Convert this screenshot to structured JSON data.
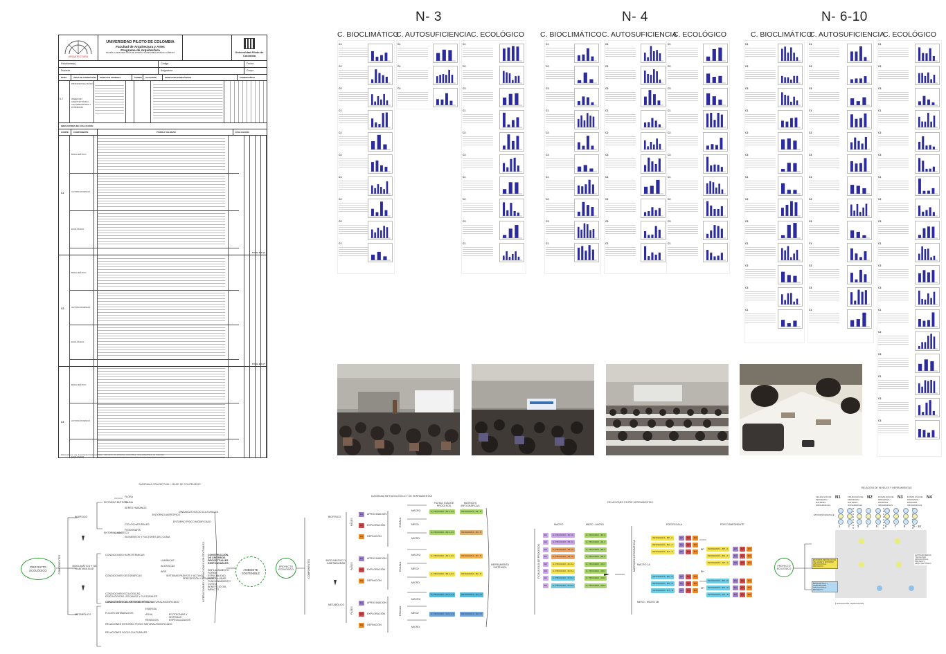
{
  "sheet": {
    "university": "UNIVERSIDAD PILOTO DE COLOMBIA",
    "faculty": "Facultad de Arquitectura y Artes",
    "program": "Programa de Arquitectura",
    "subtitle": "TEORÍA Y METODOLOGÍA DE DISEÑO SOSTENIBLE PARA EL HÁBITAT",
    "logo_text": "ARQUITECTURA",
    "brand": "Universidad Piloto de Colombia",
    "fields": {
      "student": "Estudiante(s)",
      "code": "Código",
      "date": "Fecha",
      "teacher": "Docente",
      "subject": "Asignatura",
      "group": "Grupo"
    },
    "table_headers": [
      "NIVEL",
      "ÁREA DE FORMACIÓN",
      "OBJETIVO GENERAL",
      "COMPE",
      "ACCIONES",
      "OBJETIVOS ESPECÍFICOS",
      "COMPETENCIA"
    ],
    "area": "PROFESIONAL BÁSICA",
    "level": "N-7",
    "focus": "INSERCIÓN ARQUITECTÓNICA CONTEMPORÁNEA Y PATRIMONIO",
    "indicators_title": "INDICADORES DE EVALUACIÓN",
    "indicator_headers": [
      "COMPE",
      "COMPONENTE",
      "ÍTEMS A VALORAR",
      "EVALUACIÓN"
    ],
    "groups": [
      {
        "comp": "C1",
        "rows": [
          "BIOCLIMÁTICO",
          "AUTOSUFICIENCIA",
          "ECOLÓGICO"
        ]
      },
      {
        "comp": "C2",
        "rows": [
          "BIOCLIMÁTICO",
          "AUTOSUFICIENCIA",
          "ECOLÓGICO"
        ]
      },
      {
        "comp": "C3",
        "rows": [
          "BIOCLIMÁTICO",
          "AUTOSUFICIENCIA",
          "ECOLÓGICO"
        ]
      }
    ],
    "total": "TOTAL 30% (*)",
    "footer": "Elaborado por: arq. José Daniel Cárdenas Salas. Laboratorio de ambientes sostenibles. Universidad Piloto de Colombia"
  },
  "levels": [
    {
      "title": "N- 3",
      "columns": [
        "C. BIOCLIMÁTICO",
        "C. AUTOSUFICIENCIA",
        "C. ECOLÓGICO"
      ]
    },
    {
      "title": "N- 4",
      "columns": [
        "C. BIOCLIMÁTICO",
        "C. AUTOSUFICIENCIA",
        "C. ECOLÓGICO"
      ]
    },
    {
      "title": "N- 6-10",
      "columns": [
        "C. BIOCLIMÁTICO",
        "C. AUTOSUFICIENCIA",
        "C. ECOLÓGICO"
      ]
    }
  ],
  "report_labels": [
    "C1",
    "C2",
    "C3"
  ],
  "photos": [
    "classroom-photo-1",
    "classroom-photo-2",
    "classroom-photo-3",
    "classroom-photo-4"
  ],
  "diagram1": {
    "title": "DIAGRAMA CONCEPTUAL + BASE DE CONTENIDOS",
    "root": "PROYECTO ECOLÓGICO",
    "spine": "COMPONENTES",
    "components": [
      "BIOFÍSICO",
      "BIOCLIMÁTICO Y DE HABITABILIDAD",
      "METABÓLICO"
    ],
    "bio_items": [
      "ENTORNO BIÓTICO",
      "ENTORNO ABIÓTICO",
      "FLORA",
      "FAUNA",
      "SERES HUMANOS",
      "ENTORNO ANTRÓPICO",
      "DINÁMICAS SOCIO-CULTURALES",
      "ENTORNO FÍSICO MODIFICADO",
      "CICLOS NATURALES",
      "FISIOGRAFÍA",
      "ELEMENTOS Y FACTORES DEL CLIMA"
    ],
    "hab_items": [
      "CONDICIONES HIGROTÉRMICAS",
      "LUMÍNICAS",
      "ACÚSTICAS",
      "AIRE",
      "CONDICIONES GEOGRÁFICAS",
      "SISTEMAS PASIVOS Y ACTIVOS",
      "PERCEPCIÓN Y CONFORT",
      "CONDICIONES ECOLÓGICAS, PSICOLÓGICAS, SOCIALES Y CULTURALES",
      "CONDICIONES DEL ENTORNO FÍSICO NATURAL/MODIFICADO"
    ],
    "met_items": [
      "CARACTERÍSTICAS METEOROLÓGICAS",
      "FLUJOS METABÓLICOS",
      "ENERGÍA",
      "AGUA",
      "RESIDUOS",
      "RELACIONES ENTORNO FÍSICO NATURAL/MODIFICADO",
      "RELACIONES SOCIO-CULTURALES",
      "ECOTECNIAS Y SISTEMAS ESPECIALIZADOS"
    ],
    "side_label": "INTERACCIONES Y RELACIONES CONTEXTUALES",
    "criteria": "CONSTRUCCIÓN DE CRITERIOS PROYECTUALES RESPONSABLES",
    "criteria_items": [
      "EMPLAZAMIENTO",
      "FORMA",
      "ESPACIALIDAD",
      "MATERIALIDAD",
      "FUNCIONAMIENTO",
      "COSTO BENEFICIO DEL IMPACTO"
    ],
    "result": "AMBIENTE SOSTENIBLE"
  },
  "diagram2": {
    "title": "DIAGRAMA METODOLÓGICO Y DE HERRAMIENTAS",
    "root": "PROYECTO ECOLÓGICO",
    "spine": "COMPONENTES",
    "components": [
      "BIOFÍSICO",
      "BIOCLIMÁTICO Y HABITABILIDAD",
      "METABÓLICO"
    ],
    "phases": [
      "APROXIMACIÓN",
      "EXPLORACIÓN",
      "DEFINICIÓN"
    ],
    "phase_codes": [
      "E1",
      "E2",
      "E3"
    ],
    "axis": "FASES",
    "scale_axis": "ESCALA",
    "scales": [
      "MACRO",
      "MESO",
      "MICRO"
    ],
    "col_heads": [
      "FICHAS GUÍA DE PROCESOS",
      "MATRICES INFOGRÁFICAS"
    ],
    "chips": [
      {
        "a": "G. PROCESO - B1 1,2,3",
        "b": "INFOGRAFÍA - B1 - B"
      },
      {
        "a": "G. PROCESO - B2 1,2,3",
        "b": "INFOGRAFÍA - B2 - B"
      },
      {
        "a": "G. PROCESO - B3 1,2,3",
        "b": "INFOGRAFÍA - B3 - B"
      },
      {
        "a": "G. PROCESO - B4 1,2,3",
        "b": "INFOGRAFÍA - B4 - B"
      },
      {
        "a": "G. PROCESO - M1 1,2,3",
        "b": "INFOGRAFÍA - M1 - B"
      },
      {
        "a": "G. PROCESO - M2 1,2,3",
        "b": "INFOGRAFÍA - M2 - B"
      }
    ],
    "result": "HERRAMIENTA SISTÉMICA"
  },
  "diagram3": {
    "title": "RELACIONES ENTRE HERRAMIENTAS",
    "heads": [
      "MACRO",
      "MESO - MICRO",
      "POR ESCALA",
      "POR COMPONENTE"
    ],
    "side": "FICHAS GUÍA DE PROCESOS",
    "side2": "MATRICES INFOGRÁFICAS",
    "codes": [
      "E1",
      "E2",
      "E3"
    ],
    "left_chips": [
      "G. PROCESO - B1 1A",
      "G. PROCESO - B2 1A",
      "G. PROCESO - B3 1A",
      "G. PROCESO - B4 1A",
      "G. PROCESO - M1 1A",
      "G. PROCESO - M2 1A",
      "G. PROCESO - M3 1A",
      "G. PROCESO - M4 1A"
    ],
    "mid_chips": [
      "G. PROCESO - B1 2",
      "G. PROCESO - B2 2",
      "G. PROCESO - B3 2",
      "G. PROCESO - B4 2",
      "G. PROCESO - M1 2",
      "G. PROCESO - M2 2",
      "G. PROCESO - M3 2",
      "G. PROCESO - M4 2"
    ],
    "scale_chips": [
      "INFOGRAFÍA - BP - A",
      "INFOGRAFÍA - BH - A",
      "INFOGRAFÍA - MT - A",
      "INFOGRAFÍA - BP - B",
      "INFOGRAFÍA - BH - B",
      "INFOGRAFÍA - MT - B"
    ],
    "comp_chips": [
      "INFOGRAFÍA - BP - A",
      "INFOGRAFÍA - BH - A",
      "INFOGRAFÍA - MT - A",
      "INFOGRAFÍA - BP - B",
      "INFOGRAFÍA - BH - B",
      "INFOGRAFÍA - MT - B"
    ],
    "scale_labels": [
      "MACRO 1A",
      "MESO - MICRO 2B",
      "BP",
      "BH",
      "MT"
    ]
  },
  "diagram4": {
    "title": "RELACIÓN DE NIVELES Y HERRAMIENTAS",
    "root": "PROYECTO ECOLÓGICO",
    "levels": [
      "N1",
      "N2",
      "N3",
      "N4"
    ],
    "level_texts": [
      "FICHAS GUÍA DE PROCESOS / MATRICES INFOGRÁFICAS",
      "FICHAS GUÍA DE PROCESOS / MATRICES INFOGRÁFICAS",
      "FICHAS GUÍA DE PROCESOS / MATRICES INFOGRÁFICAS",
      "FICHAS GUÍA DE PROCESOS / MATRICES INFOGRÁFICAS"
    ],
    "semesters": [
      "1",
      "2",
      "3",
      "4",
      "5",
      "6",
      "7",
      "8",
      "9 - 10"
    ],
    "boxes": [
      "ESTUDIOS DE DETALLE",
      "ESTUDIOS BIOFÍSICOS DE UN LUGAR O ENTORNO APLICACIÓN AL PROYECTO",
      "BIOCLIMÁTICO Y HABITABILIDAD APLICACIÓN AL PROYECTO",
      "AUTOSUFICIENCIA Y ECOLOGÍA APLICACIÓN AL PROYECTO ARQUITECTÓNICO"
    ],
    "side": "NIVEL",
    "legend": "1 EVALUACIÓN 2 EVALUACIÓN"
  }
}
